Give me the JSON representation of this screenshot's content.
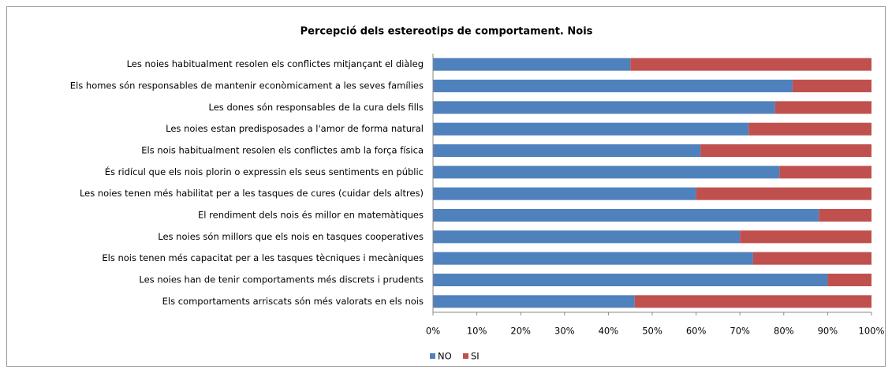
{
  "chart_data": {
    "type": "stacked_bar_horizontal",
    "title": "Percepció dels estereotips de comportament. Nois",
    "categories": [
      "Les noies habitualment resolen els conflictes mitjançant el diàleg",
      "Els homes són responsables de mantenir econòmicament a les seves famílies",
      "Les dones són responsables de la cura dels fills",
      "Les noies estan predisposades a l'amor de forma natural",
      "Els nois habitualment resolen els conflictes amb la força física",
      "És ridícul que els nois plorin o expressin els seus sentiments en públic",
      "Les noies tenen més habilitat per a les tasques de cures (cuidar dels altres)",
      "El rendiment dels nois és millor en matemàtiques",
      "Les noies són millors que els nois en tasques cooperatives",
      "Els nois tenen més capacitat per a les tasques tècniques i mecàniques",
      "Les noies han de tenir comportaments més discrets i prudents",
      "Els comportaments arriscats són més valorats en els nois"
    ],
    "series": [
      {
        "name": "NO",
        "color": "#4f81bd",
        "values": [
          45,
          82,
          78,
          72,
          61,
          79,
          60,
          88,
          70,
          73,
          90,
          46
        ]
      },
      {
        "name": "SI",
        "color": "#c0504d",
        "values": [
          55,
          18,
          22,
          28,
          39,
          21,
          40,
          12,
          30,
          27,
          10,
          54
        ]
      }
    ],
    "xlim": [
      0,
      100
    ],
    "xticks": [
      {
        "value": 0,
        "label": "0%"
      },
      {
        "value": 10,
        "label": "10%"
      },
      {
        "value": 20,
        "label": "20%"
      },
      {
        "value": 30,
        "label": "30%"
      },
      {
        "value": 40,
        "label": "40%"
      },
      {
        "value": 50,
        "label": "50%"
      },
      {
        "value": 60,
        "label": "60%"
      },
      {
        "value": 70,
        "label": "70%"
      },
      {
        "value": 80,
        "label": "80%"
      },
      {
        "value": 90,
        "label": "90%"
      },
      {
        "value": 100,
        "label": "100%"
      }
    ],
    "legend": "bottom-left"
  }
}
